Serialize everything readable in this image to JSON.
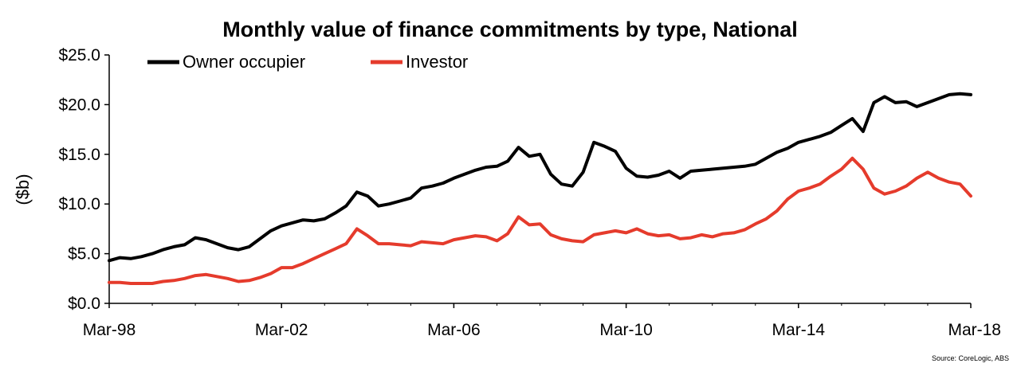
{
  "chart_data": {
    "type": "line",
    "title": "Monthly value of finance commitments by type, National",
    "xlabel": "",
    "ylabel": "($b)",
    "source": "Source: CoreLogic, ABS",
    "y_ticks": [
      "$0.0",
      "$5.0",
      "$10.0",
      "$15.0",
      "$20.0",
      "$25.0"
    ],
    "ylim": [
      0,
      25
    ],
    "x_ticks": [
      "Mar-98",
      "Mar-02",
      "Mar-06",
      "Mar-10",
      "Mar-14",
      "Mar-18"
    ],
    "x_start": "Mar-98",
    "x_end": "Mar-18",
    "grid": false,
    "legend_position": "top-left",
    "series": [
      {
        "name": "Owner occupier",
        "color": "#000000",
        "points": [
          [
            "1998-03",
            4.3
          ],
          [
            "1998-06",
            4.6
          ],
          [
            "1998-09",
            4.5
          ],
          [
            "1998-12",
            4.7
          ],
          [
            "1999-03",
            5.0
          ],
          [
            "1999-06",
            5.4
          ],
          [
            "1999-09",
            5.7
          ],
          [
            "1999-12",
            5.9
          ],
          [
            "2000-03",
            6.6
          ],
          [
            "2000-06",
            6.4
          ],
          [
            "2000-09",
            6.0
          ],
          [
            "2000-12",
            5.6
          ],
          [
            "2001-03",
            5.4
          ],
          [
            "2001-06",
            5.7
          ],
          [
            "2001-09",
            6.5
          ],
          [
            "2001-12",
            7.3
          ],
          [
            "2002-03",
            7.8
          ],
          [
            "2002-06",
            8.1
          ],
          [
            "2002-09",
            8.4
          ],
          [
            "2002-12",
            8.3
          ],
          [
            "2003-03",
            8.5
          ],
          [
            "2003-06",
            9.1
          ],
          [
            "2003-09",
            9.8
          ],
          [
            "2003-12",
            11.2
          ],
          [
            "2004-03",
            10.8
          ],
          [
            "2004-06",
            9.8
          ],
          [
            "2004-09",
            10.0
          ],
          [
            "2004-12",
            10.3
          ],
          [
            "2005-03",
            10.6
          ],
          [
            "2005-06",
            11.6
          ],
          [
            "2005-09",
            11.8
          ],
          [
            "2005-12",
            12.1
          ],
          [
            "2006-03",
            12.6
          ],
          [
            "2006-06",
            13.0
          ],
          [
            "2006-09",
            13.4
          ],
          [
            "2006-12",
            13.7
          ],
          [
            "2007-03",
            13.8
          ],
          [
            "2007-06",
            14.3
          ],
          [
            "2007-09",
            15.7
          ],
          [
            "2007-12",
            14.8
          ],
          [
            "2008-03",
            15.0
          ],
          [
            "2008-06",
            13.0
          ],
          [
            "2008-09",
            12.0
          ],
          [
            "2008-12",
            11.8
          ],
          [
            "2009-03",
            13.2
          ],
          [
            "2009-06",
            16.2
          ],
          [
            "2009-09",
            15.8
          ],
          [
            "2009-12",
            15.3
          ],
          [
            "2010-03",
            13.6
          ],
          [
            "2010-06",
            12.8
          ],
          [
            "2010-09",
            12.7
          ],
          [
            "2010-12",
            12.9
          ],
          [
            "2011-03",
            13.3
          ],
          [
            "2011-06",
            12.6
          ],
          [
            "2011-09",
            13.3
          ],
          [
            "2011-12",
            13.4
          ],
          [
            "2012-03",
            13.5
          ],
          [
            "2012-06",
            13.6
          ],
          [
            "2012-09",
            13.7
          ],
          [
            "2012-12",
            13.8
          ],
          [
            "2013-03",
            14.0
          ],
          [
            "2013-06",
            14.6
          ],
          [
            "2013-09",
            15.2
          ],
          [
            "2013-12",
            15.6
          ],
          [
            "2014-03",
            16.2
          ],
          [
            "2014-06",
            16.5
          ],
          [
            "2014-09",
            16.8
          ],
          [
            "2014-12",
            17.2
          ],
          [
            "2015-03",
            17.9
          ],
          [
            "2015-06",
            18.6
          ],
          [
            "2015-09",
            17.3
          ],
          [
            "2015-12",
            20.2
          ],
          [
            "2016-03",
            20.8
          ],
          [
            "2016-06",
            20.2
          ],
          [
            "2016-09",
            20.3
          ],
          [
            "2016-12",
            19.8
          ],
          [
            "2017-03",
            20.2
          ],
          [
            "2017-06",
            20.6
          ],
          [
            "2017-09",
            21.0
          ],
          [
            "2017-12",
            21.1
          ],
          [
            "2018-03",
            21.0
          ]
        ]
      },
      {
        "name": "Investor",
        "color": "#e53b2c",
        "points": [
          [
            "1998-03",
            2.1
          ],
          [
            "1998-06",
            2.1
          ],
          [
            "1998-09",
            2.0
          ],
          [
            "1998-12",
            2.0
          ],
          [
            "1999-03",
            2.0
          ],
          [
            "1999-06",
            2.2
          ],
          [
            "1999-09",
            2.3
          ],
          [
            "1999-12",
            2.5
          ],
          [
            "2000-03",
            2.8
          ],
          [
            "2000-06",
            2.9
          ],
          [
            "2000-09",
            2.7
          ],
          [
            "2000-12",
            2.5
          ],
          [
            "2001-03",
            2.2
          ],
          [
            "2001-06",
            2.3
          ],
          [
            "2001-09",
            2.6
          ],
          [
            "2001-12",
            3.0
          ],
          [
            "2002-03",
            3.6
          ],
          [
            "2002-06",
            3.6
          ],
          [
            "2002-09",
            4.0
          ],
          [
            "2002-12",
            4.5
          ],
          [
            "2003-03",
            5.0
          ],
          [
            "2003-06",
            5.5
          ],
          [
            "2003-09",
            6.0
          ],
          [
            "2003-12",
            7.5
          ],
          [
            "2004-03",
            6.8
          ],
          [
            "2004-06",
            6.0
          ],
          [
            "2004-09",
            6.0
          ],
          [
            "2004-12",
            5.9
          ],
          [
            "2005-03",
            5.8
          ],
          [
            "2005-06",
            6.2
          ],
          [
            "2005-09",
            6.1
          ],
          [
            "2005-12",
            6.0
          ],
          [
            "2006-03",
            6.4
          ],
          [
            "2006-06",
            6.6
          ],
          [
            "2006-09",
            6.8
          ],
          [
            "2006-12",
            6.7
          ],
          [
            "2007-03",
            6.3
          ],
          [
            "2007-06",
            7.0
          ],
          [
            "2007-09",
            8.7
          ],
          [
            "2007-12",
            7.9
          ],
          [
            "2008-03",
            8.0
          ],
          [
            "2008-06",
            6.9
          ],
          [
            "2008-09",
            6.5
          ],
          [
            "2008-12",
            6.3
          ],
          [
            "2009-03",
            6.2
          ],
          [
            "2009-06",
            6.9
          ],
          [
            "2009-09",
            7.1
          ],
          [
            "2009-12",
            7.3
          ],
          [
            "2010-03",
            7.1
          ],
          [
            "2010-06",
            7.5
          ],
          [
            "2010-09",
            7.0
          ],
          [
            "2010-12",
            6.8
          ],
          [
            "2011-03",
            6.9
          ],
          [
            "2011-06",
            6.5
          ],
          [
            "2011-09",
            6.6
          ],
          [
            "2011-12",
            6.9
          ],
          [
            "2012-03",
            6.7
          ],
          [
            "2012-06",
            7.0
          ],
          [
            "2012-09",
            7.1
          ],
          [
            "2012-12",
            7.4
          ],
          [
            "2013-03",
            8.0
          ],
          [
            "2013-06",
            8.5
          ],
          [
            "2013-09",
            9.3
          ],
          [
            "2013-12",
            10.5
          ],
          [
            "2014-03",
            11.3
          ],
          [
            "2014-06",
            11.6
          ],
          [
            "2014-09",
            12.0
          ],
          [
            "2014-12",
            12.8
          ],
          [
            "2015-03",
            13.5
          ],
          [
            "2015-06",
            14.6
          ],
          [
            "2015-09",
            13.5
          ],
          [
            "2015-12",
            11.6
          ],
          [
            "2016-03",
            11.0
          ],
          [
            "2016-06",
            11.3
          ],
          [
            "2016-09",
            11.8
          ],
          [
            "2016-12",
            12.6
          ],
          [
            "2017-03",
            13.2
          ],
          [
            "2017-06",
            12.6
          ],
          [
            "2017-09",
            12.2
          ],
          [
            "2017-12",
            12.0
          ],
          [
            "2018-03",
            10.8
          ]
        ]
      }
    ]
  }
}
